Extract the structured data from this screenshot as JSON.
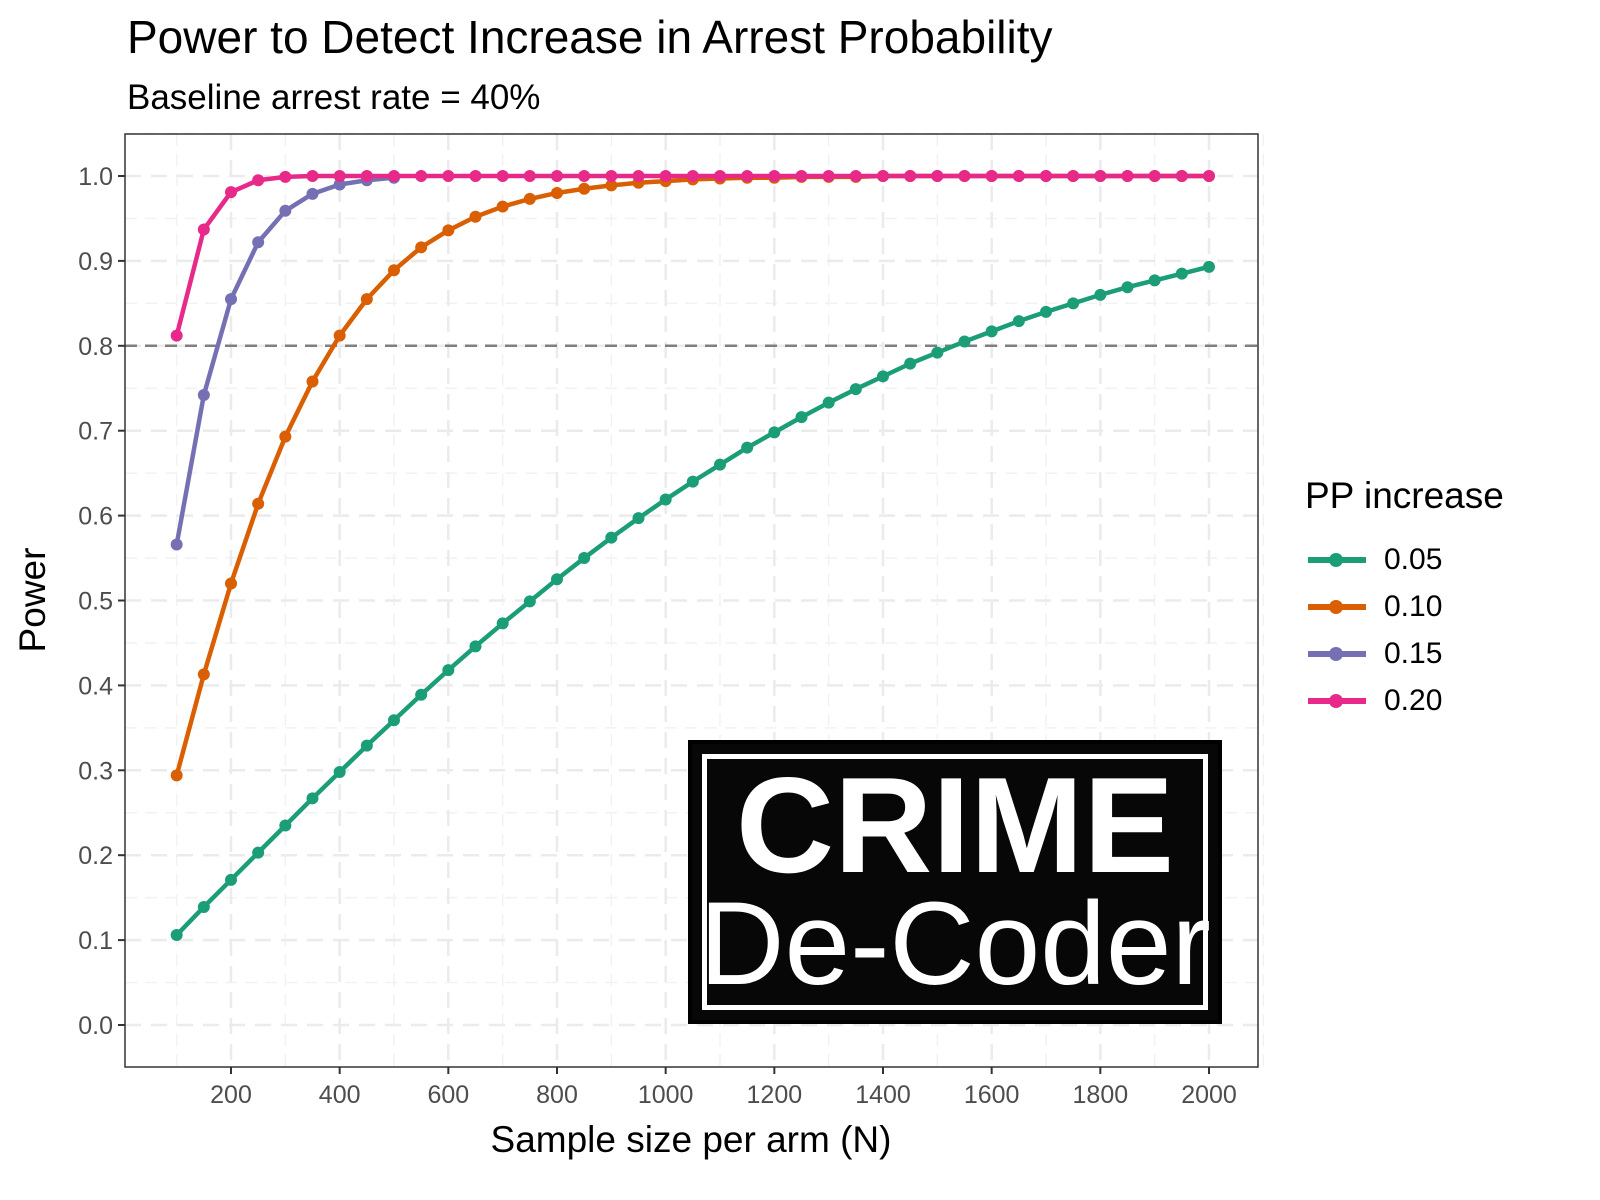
{
  "chart_data": {
    "type": "line",
    "title": "Power to Detect Increase in Arrest Probability",
    "subtitle": "Baseline arrest rate = 40%",
    "xlabel": "Sample size per arm (N)",
    "ylabel": "Power",
    "xlim": [
      57,
      2043
    ],
    "ylim": [
      -0.05,
      1.05
    ],
    "xticks": [
      200,
      400,
      600,
      800,
      1000,
      1200,
      1400,
      1600,
      1800,
      2000
    ],
    "yticks": [
      0.0,
      0.1,
      0.2,
      0.3,
      0.4,
      0.5,
      0.6,
      0.7,
      0.8,
      0.9,
      1.0
    ],
    "grid": true,
    "reference_line": {
      "y": 0.8,
      "style": "dashed",
      "color": "#7f7f7f"
    },
    "legend": {
      "title": "PP increase",
      "position": "right"
    },
    "series": [
      {
        "name": "0.05",
        "color": "#1B9E77",
        "x": [
          100,
          150,
          200,
          250,
          300,
          350,
          400,
          450,
          500,
          550,
          600,
          650,
          700,
          750,
          800,
          850,
          900,
          950,
          1000,
          1050,
          1100,
          1150,
          1200,
          1250,
          1300,
          1350,
          1400,
          1450,
          1500,
          1550,
          1600,
          1650,
          1700,
          1750,
          1800,
          1850,
          1900,
          1950,
          2000
        ],
        "values": [
          0.106,
          0.139,
          0.171,
          0.203,
          0.235,
          0.267,
          0.298,
          0.329,
          0.359,
          0.389,
          0.418,
          0.446,
          0.473,
          0.499,
          0.525,
          0.55,
          0.574,
          0.597,
          0.619,
          0.64,
          0.66,
          0.68,
          0.698,
          0.716,
          0.733,
          0.749,
          0.764,
          0.779,
          0.792,
          0.805,
          0.817,
          0.829,
          0.84,
          0.85,
          0.86,
          0.869,
          0.877,
          0.885,
          0.893
        ]
      },
      {
        "name": "0.10",
        "color": "#D95F02",
        "x": [
          100,
          150,
          200,
          250,
          300,
          350,
          400,
          450,
          500,
          550,
          600,
          650,
          700,
          750,
          800,
          850,
          900,
          950,
          1000,
          1050,
          1100,
          1150,
          1200,
          1250,
          1300,
          1350,
          1400,
          1450,
          1500,
          1550,
          1600,
          1650,
          1700,
          1750,
          1800,
          1850,
          1900,
          1950,
          2000
        ],
        "values": [
          0.294,
          0.413,
          0.52,
          0.614,
          0.693,
          0.758,
          0.812,
          0.855,
          0.889,
          0.916,
          0.936,
          0.952,
          0.964,
          0.973,
          0.98,
          0.985,
          0.989,
          0.992,
          0.994,
          0.996,
          0.997,
          0.998,
          0.998,
          0.999,
          0.999,
          0.999,
          1.0,
          1.0,
          1.0,
          1.0,
          1.0,
          1.0,
          1.0,
          1.0,
          1.0,
          1.0,
          1.0,
          1.0,
          1.0
        ]
      },
      {
        "name": "0.15",
        "color": "#7570B3",
        "x": [
          100,
          150,
          200,
          250,
          300,
          350,
          400,
          450,
          500
        ],
        "values": [
          0.566,
          0.742,
          0.855,
          0.922,
          0.959,
          0.979,
          0.99,
          0.995,
          0.998
        ]
      },
      {
        "name": "0.20",
        "color": "#E7298A",
        "x": [
          100,
          150,
          200,
          250,
          300,
          350,
          400,
          450,
          500,
          550,
          600,
          650,
          700,
          750,
          800,
          850,
          900,
          950,
          1000,
          1050,
          1100,
          1150,
          1200,
          1250,
          1300,
          1350,
          1400,
          1450,
          1500,
          1550,
          1600,
          1650,
          1700,
          1750,
          1800,
          1850,
          1900,
          1950,
          2000
        ],
        "values": [
          0.812,
          0.937,
          0.981,
          0.995,
          0.999,
          1.0,
          1.0,
          1.0,
          1.0,
          1.0,
          1.0,
          1.0,
          1.0,
          1.0,
          1.0,
          1.0,
          1.0,
          1.0,
          1.0,
          1.0,
          1.0,
          1.0,
          1.0,
          1.0,
          1.0,
          1.0,
          1.0,
          1.0,
          1.0,
          1.0,
          1.0,
          1.0,
          1.0,
          1.0,
          1.0,
          1.0,
          1.0,
          1.0,
          1.0
        ]
      }
    ]
  },
  "watermark": {
    "line1": "CRIME",
    "line2": "De-Coder"
  }
}
